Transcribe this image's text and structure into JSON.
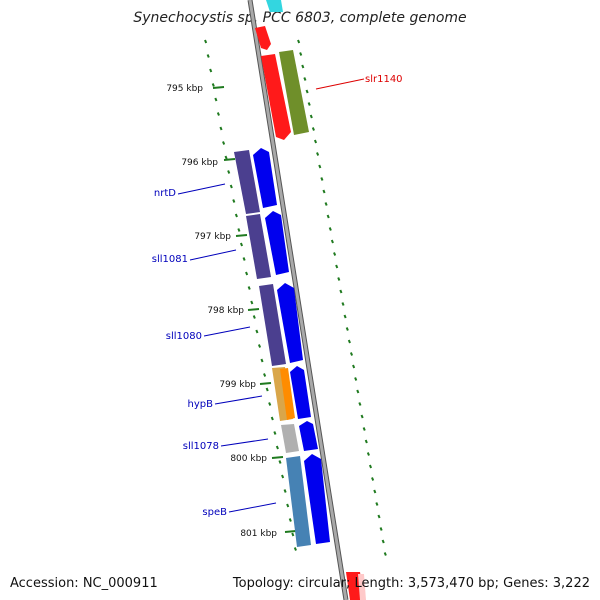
{
  "title": "Synechocystis sp. PCC 6803, complete genome",
  "footer": {
    "accession": "Accession: NC_000911",
    "summary": "Topology: circular; Length: 3,573,470 bp; Genes: 3,222"
  },
  "colors": {
    "backbone": "#8c8c8c",
    "tick": "#1f7a1f",
    "forward_label": "#dd0000",
    "reverse_label": "#0000bb"
  },
  "ticks": [
    {
      "label": "795 kbp"
    },
    {
      "label": "796 kbp"
    },
    {
      "label": "797 kbp"
    },
    {
      "label": "798 kbp"
    },
    {
      "label": "799 kbp"
    },
    {
      "label": "800 kbp"
    },
    {
      "label": "801 kbp"
    }
  ],
  "genes": [
    {
      "name": "slr1140",
      "strand": "forward",
      "gene_color": "#ff1a1a",
      "cds_color": "#6f8f2a"
    },
    {
      "name": "nrtD",
      "strand": "reverse",
      "gene_color": "#0000ee",
      "cds_color": "#4b3f8f"
    },
    {
      "name": "sll1081",
      "strand": "reverse",
      "gene_color": "#0000ee",
      "cds_color": "#4b3f8f"
    },
    {
      "name": "sll1080",
      "strand": "reverse",
      "gene_color": "#0000ee",
      "cds_color": "#4b3f8f"
    },
    {
      "name": "hypB",
      "strand": "reverse",
      "gene_color": "#ff8c00",
      "cds_color": "#d9a64a"
    },
    {
      "name": "sll1078",
      "strand": "reverse",
      "gene_color": "#0000ee",
      "cds_color": "#b0b0b0"
    },
    {
      "name": "speB",
      "strand": "reverse",
      "gene_color": "#0000ee",
      "cds_color": "#4682b4"
    }
  ]
}
